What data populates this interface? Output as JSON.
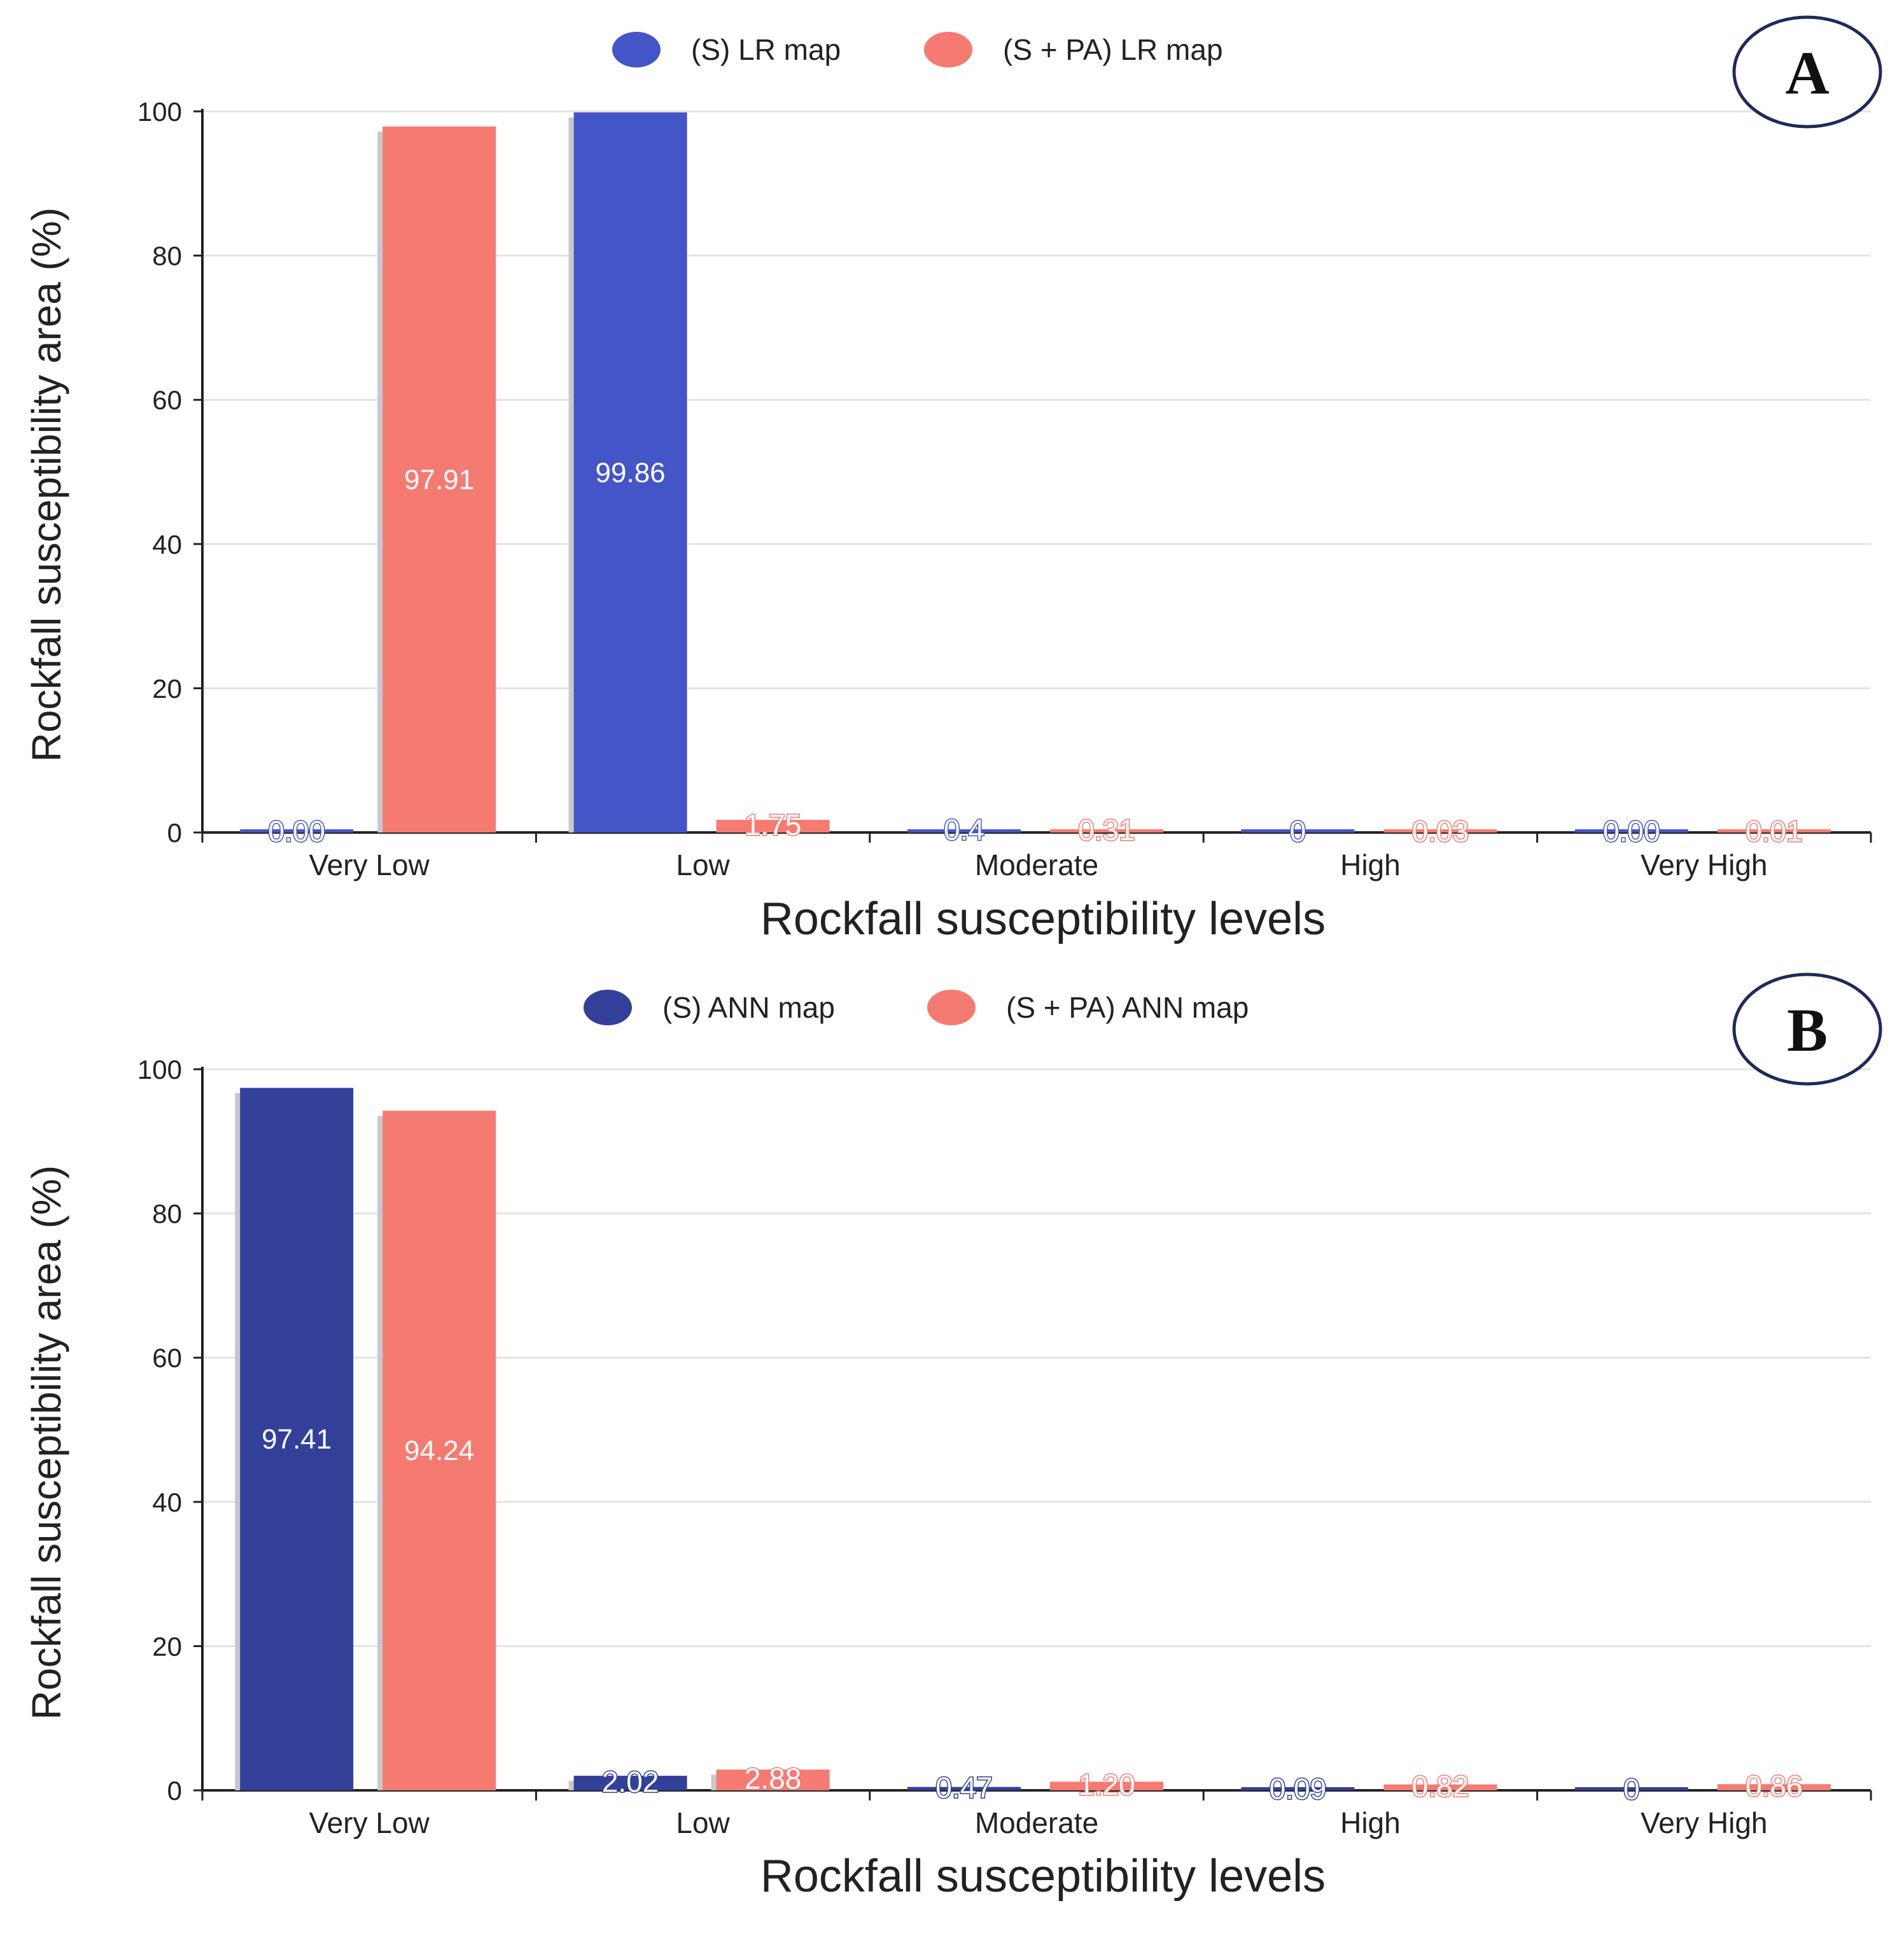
{
  "colors": {
    "s_lr": "#4455c8",
    "s_ann": "#334099",
    "s_pa": "#f57a72",
    "grid": "#e3e3e3",
    "axis": "#222222"
  },
  "chart_data": [
    {
      "type": "bar",
      "panel_label": "A",
      "categories": [
        "Very Low",
        "Low",
        "Moderate",
        "High",
        "Very High"
      ],
      "series": [
        {
          "name": "(S) LR map",
          "values": [
            0.0,
            99.86,
            0.4,
            0,
            0.0
          ],
          "labels": [
            "0.00",
            "99.86",
            "0.4",
            "0",
            "0.00"
          ],
          "color": "#4455c8"
        },
        {
          "name": "(S + PA) LR map",
          "values": [
            97.91,
            1.75,
            0.31,
            0.03,
            0.01
          ],
          "labels": [
            "97.91",
            "1.75",
            "0.31",
            "0.03",
            "0.01"
          ],
          "color": "#f57a72"
        }
      ],
      "xlabel": "Rockfall susceptibility levels",
      "ylabel": "Rockfall susceptibility area (%)",
      "ylim": [
        0,
        100
      ],
      "yticks": [
        "0",
        "20",
        "40",
        "60",
        "80",
        "100"
      ],
      "legend_position": "top-center",
      "grid": true
    },
    {
      "type": "bar",
      "panel_label": "B",
      "categories": [
        "Very Low",
        "Low",
        "Moderate",
        "High",
        "Very High"
      ],
      "series": [
        {
          "name": "(S) ANN map",
          "values": [
            97.41,
            2.02,
            0.47,
            0.09,
            0
          ],
          "labels": [
            "97.41",
            "2.02",
            "0.47",
            "0.09",
            "0"
          ],
          "color": "#334099"
        },
        {
          "name": "(S + PA) ANN map",
          "values": [
            94.24,
            2.88,
            1.2,
            0.82,
            0.86
          ],
          "labels": [
            "94.24",
            "2.88",
            "1.20",
            "0.82",
            "0.86"
          ],
          "color": "#f57a72"
        }
      ],
      "xlabel": "Rockfall susceptibility levels",
      "ylabel": "Rockfall susceptibility area (%)",
      "ylim": [
        0,
        100
      ],
      "yticks": [
        "0",
        "20",
        "40",
        "60",
        "80",
        "100"
      ],
      "legend_position": "top-center",
      "grid": true
    }
  ]
}
